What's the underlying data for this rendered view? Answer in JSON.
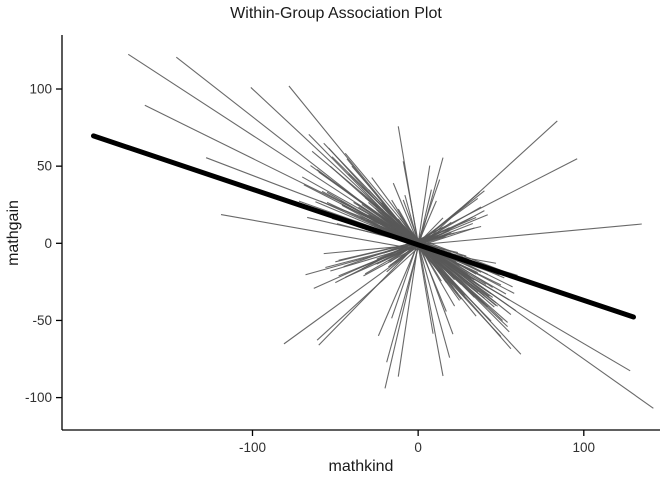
{
  "title": "Within-Group Association Plot",
  "chart_data": {
    "type": "line",
    "subtype": "within-group-association-segments",
    "title": "Within-Group Association Plot",
    "xlabel": "mathkind",
    "ylabel": "mathgain",
    "xlim": [
      -215,
      146
    ],
    "ylim": [
      -121,
      135
    ],
    "x_ticks": [
      -100,
      0,
      100
    ],
    "y_ticks": [
      -100,
      -50,
      0,
      50,
      100
    ],
    "grid": false,
    "legend": "none",
    "colors": {
      "segments": "#595959",
      "trend": "#000000",
      "axis": "#000000",
      "tick_text": "#303030"
    },
    "trend_line": {
      "x1": -196,
      "y1": 69.6,
      "x2": 130,
      "y2": -47.8
    },
    "segments_format": "[x_start, x_end, slope, intercept] with y = slope*x + intercept",
    "segments": [
      [
        -175,
        34,
        -0.7,
        0
      ],
      [
        -146,
        40,
        -0.84,
        -2
      ],
      [
        -165,
        57,
        -0.53,
        2
      ],
      [
        -78,
        35,
        -1.32,
        -1
      ],
      [
        -61,
        84,
        0.98,
        -3
      ],
      [
        -65,
        142,
        -0.76,
        1
      ],
      [
        -57,
        135,
        0.1,
        -1
      ],
      [
        -128,
        74,
        -0.41,
        3
      ],
      [
        -119,
        47,
        -0.19,
        -4
      ],
      [
        -101,
        54,
        -1.0,
        0
      ],
      [
        -47,
        128,
        -0.63,
        -2
      ],
      [
        -81,
        20,
        0.78,
        -2
      ],
      [
        -60,
        15,
        1.1,
        0
      ],
      [
        -34,
        96,
        0.55,
        2
      ],
      [
        -12,
        7,
        7.2,
        0
      ],
      [
        -9,
        15,
        -5.8,
        1
      ],
      [
        -20,
        8,
        4.6,
        -2
      ],
      [
        -8,
        19,
        -3.9,
        0
      ],
      [
        -16,
        13,
        3.1,
        1
      ],
      [
        -12,
        9,
        -6.4,
        -1
      ],
      [
        -24,
        11,
        2.5,
        0
      ],
      [
        -9,
        21,
        -2.9,
        2
      ],
      [
        -19,
        15,
        3.9,
        -3
      ],
      [
        -15,
        17,
        -2.6,
        0
      ],
      [
        -45,
        38,
        -0.52,
        1
      ],
      [
        -30,
        26,
        -0.95,
        -2
      ],
      [
        -52,
        20,
        -0.31,
        0
      ],
      [
        -24,
        45,
        -0.68,
        2
      ],
      [
        -38,
        33,
        0.42,
        -1
      ],
      [
        -60,
        28,
        -0.77,
        0
      ],
      [
        -22,
        50,
        -1.15,
        -3
      ],
      [
        -48,
        18,
        0.25,
        1
      ],
      [
        -35,
        42,
        -0.48,
        0
      ],
      [
        -28,
        24,
        -1.45,
        2
      ],
      [
        -55,
        30,
        -0.62,
        -1
      ],
      [
        -18,
        40,
        0.85,
        0
      ],
      [
        -42,
        22,
        -1.05,
        1
      ],
      [
        -33,
        48,
        -0.38,
        -2
      ],
      [
        -26,
        36,
        -0.88,
        0
      ],
      [
        -50,
        15,
        0.55,
        2
      ],
      [
        -20,
        44,
        -0.72,
        -1
      ],
      [
        -40,
        29,
        -1.25,
        0
      ],
      [
        -31,
        52,
        -0.45,
        1
      ],
      [
        -23,
        34,
        0.35,
        -2
      ],
      [
        -58,
        25,
        -0.58,
        0
      ],
      [
        -27,
        46,
        -0.92,
        1
      ],
      [
        -44,
        19,
        0.48,
        -1
      ],
      [
        -36,
        41,
        -0.65,
        0
      ],
      [
        -21,
        55,
        -1.08,
        2
      ],
      [
        -49,
        27,
        -0.28,
        -1
      ],
      [
        -32,
        38,
        0.62,
        0
      ],
      [
        -25,
        43,
        -0.82,
        1
      ],
      [
        -54,
        21,
        -1.18,
        -2
      ],
      [
        -29,
        49,
        -0.42,
        0
      ],
      [
        -41,
        32,
        -0.75,
        1
      ],
      [
        -19,
        37,
        0.92,
        -1
      ],
      [
        -47,
        24,
        -0.55,
        0
      ],
      [
        -34,
        51,
        -1.02,
        2
      ],
      [
        -28,
        39,
        -0.35,
        -1
      ],
      [
        -56,
        17,
        0.28,
        0
      ],
      [
        -22,
        47,
        -0.88,
        1
      ],
      [
        -43,
        26,
        -1.32,
        -2
      ],
      [
        -30,
        53,
        -0.62,
        0
      ],
      [
        -25,
        35,
        0.45,
        1
      ],
      [
        -59,
        23,
        -0.48,
        -1
      ],
      [
        -26,
        42,
        -0.98,
        0
      ],
      [
        -45,
        18,
        0.38,
        2
      ],
      [
        -37,
        44,
        -0.72,
        -1
      ],
      [
        -20,
        56,
        -1.22,
        0
      ],
      [
        -51,
        29,
        -0.32,
        1
      ],
      [
        -33,
        40,
        0.58,
        -2
      ],
      [
        -24,
        48,
        -0.85,
        0
      ],
      [
        -57,
        22,
        -1.12,
        1
      ],
      [
        -31,
        50,
        -0.52,
        -1
      ],
      [
        -39,
        31,
        -0.68,
        0
      ],
      [
        -17,
        36,
        0.78,
        1
      ],
      [
        -46,
        25,
        -0.58,
        -2
      ],
      [
        -35,
        54,
        -0.95,
        0
      ],
      [
        -27,
        41,
        -0.42,
        1
      ],
      [
        -53,
        16,
        0.32,
        -1
      ],
      [
        -21,
        45,
        -0.78,
        0
      ],
      [
        -44,
        28,
        -1.28,
        2
      ],
      [
        -29,
        55,
        -0.65,
        -1
      ],
      [
        -26,
        33,
        0.52,
        0
      ],
      [
        -70,
        35,
        -0.6,
        1
      ],
      [
        -62,
        30,
        -0.45,
        -1
      ],
      [
        -68,
        22,
        0.3,
        0
      ],
      [
        -64,
        40,
        -0.9,
        2
      ],
      [
        -72,
        26,
        -0.38,
        0
      ],
      [
        -66,
        44,
        -1.1,
        -2
      ],
      [
        -63,
        19,
        0.48,
        1
      ],
      [
        -69,
        37,
        -0.55,
        0
      ],
      [
        -61,
        47,
        -0.8,
        -1
      ],
      [
        -67,
        24,
        -0.25,
        0
      ],
      [
        -15,
        12,
        -0.85,
        1
      ],
      [
        -12,
        18,
        -1.4,
        -1
      ],
      [
        -18,
        10,
        0.65,
        0
      ],
      [
        -10,
        16,
        -0.52,
        2
      ],
      [
        -16,
        14,
        -1.75,
        0
      ],
      [
        -13,
        20,
        0.4,
        -1
      ],
      [
        -19,
        9,
        -0.95,
        0
      ],
      [
        -11,
        17,
        -1.55,
        1
      ],
      [
        -17,
        13,
        0.72,
        -2
      ],
      [
        -14,
        15,
        -0.6,
        0
      ],
      [
        -22,
        11,
        -1.2,
        0
      ],
      [
        -10,
        24,
        -0.7,
        1
      ],
      [
        -25,
        13,
        0.5,
        -1
      ],
      [
        -12,
        22,
        -1.85,
        0
      ],
      [
        -20,
        16,
        -0.4,
        2
      ],
      [
        -14,
        26,
        0.88,
        0
      ],
      [
        -23,
        12,
        -0.65,
        -1
      ],
      [
        -11,
        25,
        -1.48,
        0
      ],
      [
        -21,
        14,
        0.35,
        1
      ],
      [
        -13,
        23,
        -0.9,
        -2
      ],
      [
        -36,
        58,
        -0.56,
        0
      ],
      [
        -52,
        34,
        -1.06,
        1
      ],
      [
        -28,
        60,
        -0.33,
        -1
      ],
      [
        -48,
        42,
        0.44,
        0
      ],
      [
        -32,
        56,
        -0.86,
        2
      ],
      [
        -55,
        36,
        -0.5,
        -1
      ],
      [
        -30,
        62,
        -1.16,
        0
      ],
      [
        -50,
        38,
        0.26,
        1
      ],
      [
        -34,
        59,
        -0.74,
        0
      ],
      [
        -53,
        40,
        -0.96,
        -1
      ]
    ]
  }
}
